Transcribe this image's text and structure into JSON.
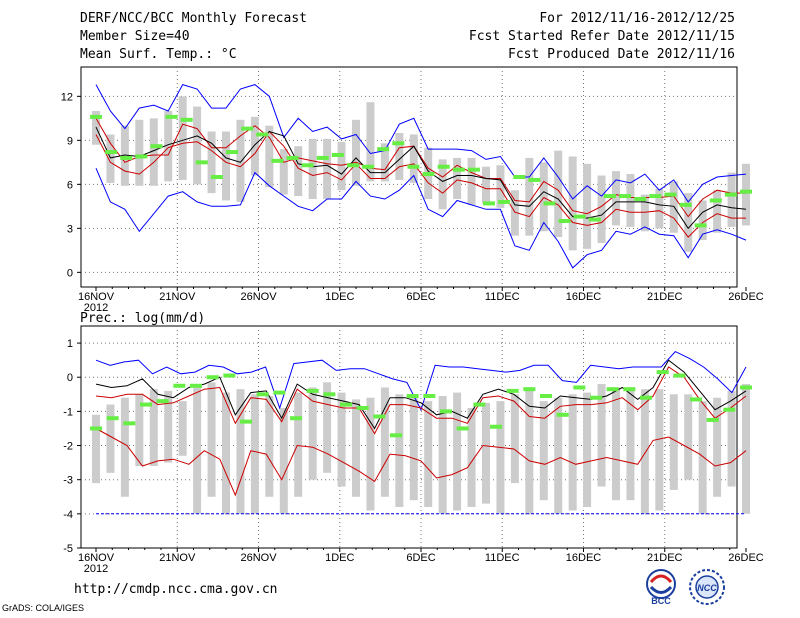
{
  "header": {
    "title": "DERF/NCC/BCC Monthly Forecast",
    "member_size": "Member Size=40",
    "variable": "Mean Surf. Temp.: °C",
    "period": "For 2012/11/16-2012/12/25",
    "started": "Fcst Started Refer Date 2012/11/15",
    "produced": "Fcst Produced Date 2012/11/16"
  },
  "footer": {
    "url": "http://cmdp.ncc.cma.gov.cn",
    "grads": "GrADS: COLA/IGES",
    "logo_left": "BCC",
    "logo_right": "NCC"
  },
  "colors": {
    "max_min": "#0000ff",
    "quartile": "#cc0000",
    "median": "#000000",
    "observed": "#66ee44",
    "box": "#cccccc",
    "grid": "#777777"
  },
  "chart_data": [
    {
      "type": "line",
      "title": "Mean Surf. Temp.: °C",
      "x_tick_labels": [
        "16NOV",
        "21NOV",
        "26NOV",
        "1DEC",
        "6DEC",
        "11DEC",
        "16DEC",
        "21DEC",
        "26DEC"
      ],
      "x_year_label": "2012",
      "ylim": [
        -1,
        14
      ],
      "yticks": [
        0,
        3,
        6,
        9,
        12
      ],
      "series": [
        {
          "name": "max",
          "values": [
            12.8,
            11,
            9.8,
            11.2,
            11.4,
            11,
            12.8,
            12.5,
            11.2,
            11.2,
            12.5,
            12.8,
            12,
            9.2,
            10.5,
            9.6,
            9.9,
            9.1,
            9.4,
            8.1,
            8.3,
            10.1,
            10.5,
            8.4,
            8.4,
            8.4,
            8.3,
            7.7,
            7.9,
            6.5,
            6.5,
            7.8,
            6.5,
            5,
            5.9,
            5.2,
            6.3,
            6.1,
            6.7,
            5.6,
            6.3,
            4.8,
            6,
            6.5,
            6.6,
            6.7
          ]
        },
        {
          "name": "q3",
          "values": [
            10.5,
            8.8,
            7.5,
            7.9,
            8,
            8,
            10.1,
            9.8,
            8.5,
            8.5,
            9.3,
            10,
            9.2,
            7.5,
            7.8,
            7.6,
            7.4,
            7.3,
            7.5,
            7.1,
            7,
            8.5,
            8.6,
            7.1,
            6.5,
            7.3,
            6.8,
            6.4,
            6.4,
            4.9,
            4.8,
            6.2,
            5.6,
            4.2,
            4,
            4.5,
            5.3,
            5.1,
            5.1,
            5.1,
            5.2,
            3.8,
            5,
            5.6,
            5.4,
            5.4
          ]
        },
        {
          "name": "median",
          "values": [
            9.9,
            7.8,
            8,
            7.9,
            8.3,
            8.7,
            9,
            9.3,
            8.8,
            7.8,
            7.5,
            8.7,
            9.6,
            9.3,
            7.4,
            7.2,
            7.3,
            6.7,
            7.8,
            6.8,
            6.8,
            7.7,
            8.6,
            6.9,
            6.2,
            6.6,
            6.6,
            6.4,
            6.3,
            4.6,
            4.5,
            5.5,
            5,
            3.8,
            3.7,
            3.9,
            4.8,
            4.8,
            4.8,
            4.6,
            4.5,
            3,
            4.1,
            4.6,
            4.4,
            4.3
          ]
        },
        {
          "name": "q1",
          "values": [
            9.4,
            7.5,
            6.9,
            6.7,
            7.5,
            8.5,
            8.8,
            8.9,
            8.3,
            7.5,
            7.2,
            8.1,
            9.6,
            8.6,
            7.1,
            6.6,
            6.8,
            6.3,
            7.4,
            6.4,
            6.4,
            7.2,
            7.4,
            6.1,
            5.4,
            6.3,
            6.1,
            5.7,
            5.7,
            4.1,
            3.8,
            5.1,
            4.6,
            3.4,
            3.2,
            3.4,
            4.3,
            4.1,
            4.1,
            4.2,
            3.7,
            2.4,
            3.4,
            4,
            3.7,
            3.7
          ]
        },
        {
          "name": "min",
          "values": [
            7.1,
            4.8,
            4.3,
            2.8,
            4,
            5.2,
            5.5,
            4.8,
            4.5,
            4.5,
            4.6,
            6.8,
            5.9,
            5.2,
            4.5,
            4.2,
            5,
            5,
            6.2,
            5.2,
            5,
            5.6,
            6.6,
            4.3,
            3.8,
            4.9,
            4.6,
            4.3,
            4.3,
            1.8,
            1.5,
            3.4,
            2.1,
            0.3,
            1.2,
            1.5,
            2.8,
            2.6,
            3.1,
            2.6,
            2.5,
            1,
            2.6,
            2.9,
            2.6,
            2.2
          ]
        },
        {
          "name": "observed",
          "values": [
            10.6,
            8.2,
            7.8,
            7.9,
            8.6,
            10.6,
            10.4,
            7.5,
            6.5,
            8.2,
            9.8,
            9.4,
            7.6,
            7.8,
            7.3,
            7.8,
            8,
            7.3,
            7.2,
            8.4,
            8.8,
            7.2,
            6.7,
            7.2,
            7,
            7,
            4.7,
            4.8,
            6.5,
            6.3,
            4.7,
            3.5,
            3.8,
            3.6,
            5.2,
            5.2,
            5,
            5.2,
            5.3,
            4.6,
            3.2,
            4.9,
            5.3,
            5.5
          ]
        },
        {
          "name": "box_hi",
          "values": [
            11,
            9.4,
            10,
            10.4,
            10.5,
            11,
            12,
            11.3,
            9.6,
            9.6,
            10.4,
            10.6,
            10,
            8.4,
            8.6,
            9.1,
            9.1,
            8.9,
            10.4,
            11.6,
            8.8,
            9.5,
            9.4,
            8.5,
            7.7,
            7.8,
            7.8,
            7.2,
            7.3,
            5.6,
            7.8,
            7.5,
            8.3,
            7.9,
            7.4,
            6.6,
            6.9,
            6.7,
            5.3,
            5.7,
            6.2,
            5.4,
            4.9,
            5.6,
            6.8,
            7.4
          ]
        },
        {
          "name": "box_lo",
          "values": [
            8.7,
            6.1,
            5.9,
            5.9,
            5.9,
            6.2,
            6.3,
            6,
            5.4,
            4.9,
            4.8,
            6.6,
            5.8,
            5.3,
            5.2,
            5,
            5,
            5.6,
            5.9,
            6.2,
            6.2,
            6.3,
            6.1,
            5,
            4.3,
            5,
            4.6,
            4.7,
            4.4,
            2.5,
            2.5,
            2.8,
            2.4,
            1.5,
            1.6,
            2,
            3.2,
            3.1,
            2.8,
            3,
            2.7,
            1.4,
            2.2,
            2.7,
            3.1,
            3.2
          ]
        }
      ]
    },
    {
      "type": "line",
      "title": "Prec.: log(mm/d)",
      "x_tick_labels": [
        "16NOV",
        "21NOV",
        "26NOV",
        "1DEC",
        "6DEC",
        "11DEC",
        "16DEC",
        "21DEC",
        "26DEC"
      ],
      "x_year_label": "2012",
      "ylim": [
        -5,
        1.5
      ],
      "yticks": [
        -5,
        -4,
        -3,
        -2,
        -1,
        0,
        1
      ],
      "series": [
        {
          "name": "max",
          "values": [
            0.5,
            0.35,
            0.45,
            0.5,
            0.1,
            0.3,
            0.1,
            0.15,
            0.35,
            0.3,
            0.1,
            0.15,
            0.3,
            -0.9,
            0.4,
            0.45,
            0.5,
            0.2,
            0.25,
            0.25,
            0.1,
            -0.05,
            -0.15,
            -0.95,
            0.35,
            0.3,
            0.3,
            0.25,
            0.2,
            0.15,
            0.2,
            0.35,
            0.35,
            -0.1,
            -0.15,
            0.35,
            0.3,
            0.25,
            0.3,
            0.3,
            0.3,
            0.75,
            0.55,
            0.3,
            -0.05,
            -0.45,
            0.3
          ]
        },
        {
          "name": "median",
          "values": [
            -0.2,
            -0.3,
            -0.25,
            -0.05,
            -0.5,
            -0.6,
            -0.3,
            -0.2,
            0,
            -1.1,
            -0.45,
            -0.4,
            -1.2,
            -0.2,
            -0.5,
            -0.6,
            -0.7,
            -0.8,
            -1.5,
            -0.6,
            -0.6,
            -0.75,
            -1.1,
            -1,
            -1.2,
            -0.5,
            -0.35,
            -0.5,
            -0.85,
            -0.9,
            -0.55,
            -0.6,
            -0.65,
            -0.55,
            -0.3,
            -0.65,
            -0.3,
            0.5,
            0.15,
            -0.4,
            -0.95,
            -0.7,
            -0.4
          ]
        },
        {
          "name": "q3",
          "values": [
            -0.55,
            -0.6,
            -0.5,
            -0.5,
            -0.8,
            -0.75,
            -0.55,
            -0.35,
            -0.3,
            -1.35,
            -0.6,
            -0.65,
            -1.3,
            -0.35,
            -0.7,
            -0.8,
            -0.9,
            -0.9,
            -1.65,
            -0.8,
            -0.8,
            -0.9,
            -1.2,
            -1.2,
            -1.35,
            -0.6,
            -0.55,
            -0.7,
            -1.15,
            -1.2,
            -0.85,
            -0.8,
            -0.8,
            -0.75,
            -0.6,
            -0.95,
            -0.55,
            0.3,
            0,
            -0.65,
            -1.2,
            -0.9,
            -0.55
          ]
        },
        {
          "name": "q1",
          "values": [
            -1.5,
            -1.75,
            -2,
            -2.6,
            -2.45,
            -2.4,
            -2.55,
            -2.15,
            -2.4,
            -3.45,
            -2.15,
            -2.25,
            -3,
            -2,
            -2.05,
            -2.25,
            -2.5,
            -2.75,
            -3.05,
            -2.25,
            -2.3,
            -2.45,
            -2.95,
            -2.85,
            -2.65,
            -2,
            -2.05,
            -2.1,
            -2.45,
            -2.55,
            -2.35,
            -2.55,
            -2.45,
            -2.35,
            -2.45,
            -2.55,
            -1.85,
            -1.75,
            -2,
            -2.25,
            -2.6,
            -2.5,
            -2.15
          ]
        },
        {
          "name": "min",
          "values": [
            -4,
            -4,
            -4,
            -4,
            -4,
            -4,
            -4,
            -4,
            -4,
            -4,
            -4,
            -4,
            -4,
            -4,
            -4,
            -4,
            -4,
            -4,
            -4,
            -4,
            -4,
            -4,
            -4,
            -4,
            -4,
            -4,
            -4,
            -4,
            -4,
            -4,
            -4,
            -4,
            -4,
            -4,
            -4,
            -4,
            -4,
            -4,
            -4,
            -4,
            -4,
            -4,
            -4,
            -4,
            -4,
            -4
          ]
        },
        {
          "name": "observed",
          "values": [
            -1.5,
            -1.2,
            -1.35,
            -0.8,
            -0.7,
            -0.25,
            -0.25,
            0,
            0.05,
            -1.3,
            -0.5,
            -0.45,
            -1.2,
            -0.4,
            -0.5,
            -0.8,
            -0.9,
            -1.15,
            -1.7,
            -0.55,
            -0.55,
            -1,
            -1.5,
            -0.8,
            -1.45,
            -0.4,
            -0.35,
            -0.55,
            -1.1,
            -0.3,
            -0.6,
            -0.35,
            -0.35,
            -0.6,
            0.15,
            0.05,
            -0.65,
            -1.25,
            -0.95,
            -0.3
          ]
        },
        {
          "name": "box_hi",
          "values": [
            -1.1,
            -0.8,
            -0.6,
            -0.5,
            -0.35,
            -0.4,
            -0.7,
            -0.3,
            -0.15,
            -0.45,
            -0.35,
            -0.5,
            -0.55,
            -0.9,
            -0.45,
            -0.3,
            -0.15,
            -0.45,
            -0.65,
            -0.6,
            -0.3,
            -0.5,
            -0.5,
            -0.7,
            -0.55,
            -0.45,
            -0.9,
            -0.75,
            -0.7,
            -0.5,
            -0.3,
            -0.7,
            -0.6,
            -0.5,
            -0.45,
            -0.2,
            -0.3,
            -0.4,
            -0.35,
            -0.35,
            -0.5,
            -0.5,
            -0.7,
            -0.6,
            -0.4,
            -0.2
          ]
        },
        {
          "name": "box_lo",
          "values": [
            -3.1,
            -2.8,
            -3.5,
            -2.6,
            -2.6,
            -2.5,
            -2.3,
            -4,
            -3.5,
            -4,
            -4,
            -4,
            -3.5,
            -4,
            -3.5,
            -3,
            -2.8,
            -3.2,
            -3.5,
            -3.9,
            -3.5,
            -3.8,
            -3.6,
            -3.8,
            -4,
            -3.9,
            -3.8,
            -3.7,
            -4,
            -3.1,
            -4,
            -3.6,
            -4,
            -3.9,
            -3.8,
            -3.2,
            -3.6,
            -3.6,
            -4,
            -3.9,
            -3.3,
            -3,
            -4,
            -3.5,
            -3.2,
            -4
          ]
        }
      ]
    }
  ]
}
